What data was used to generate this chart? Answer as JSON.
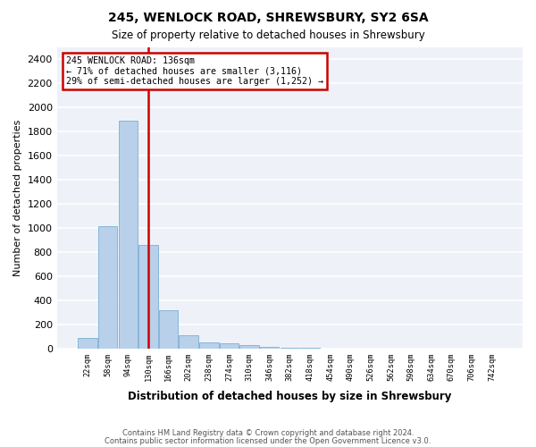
{
  "title1": "245, WENLOCK ROAD, SHREWSBURY, SY2 6SA",
  "title2": "Size of property relative to detached houses in Shrewsbury",
  "xlabel": "Distribution of detached houses by size in Shrewsbury",
  "ylabel": "Number of detached properties",
  "footer1": "Contains HM Land Registry data © Crown copyright and database right 2024.",
  "footer2": "Contains public sector information licensed under the Open Government Licence v3.0.",
  "property_label": "245 WENLOCK ROAD: 136sqm",
  "annotation_line1": "← 71% of detached houses are smaller (3,116)",
  "annotation_line2": "29% of semi-detached houses are larger (1,252) →",
  "bin_labels": [
    "22sqm",
    "58sqm",
    "94sqm",
    "130sqm",
    "166sqm",
    "202sqm",
    "238sqm",
    "274sqm",
    "310sqm",
    "346sqm",
    "382sqm",
    "418sqm",
    "454sqm",
    "490sqm",
    "526sqm",
    "562sqm",
    "598sqm",
    "634sqm",
    "670sqm",
    "706sqm",
    "742sqm"
  ],
  "bar_values": [
    85,
    1010,
    1890,
    860,
    315,
    110,
    48,
    38,
    25,
    15,
    5,
    2,
    0,
    0,
    0,
    0,
    0,
    0,
    0,
    0,
    0
  ],
  "bar_color": "#b8d0ea",
  "bar_edge_color": "#7aafd4",
  "vline_bin_index": 3,
  "vline_color": "#cc0000",
  "ylim_max": 2500,
  "ytick_step": 200,
  "plot_bg_color": "#eef2f8",
  "grid_color": "#ffffff"
}
